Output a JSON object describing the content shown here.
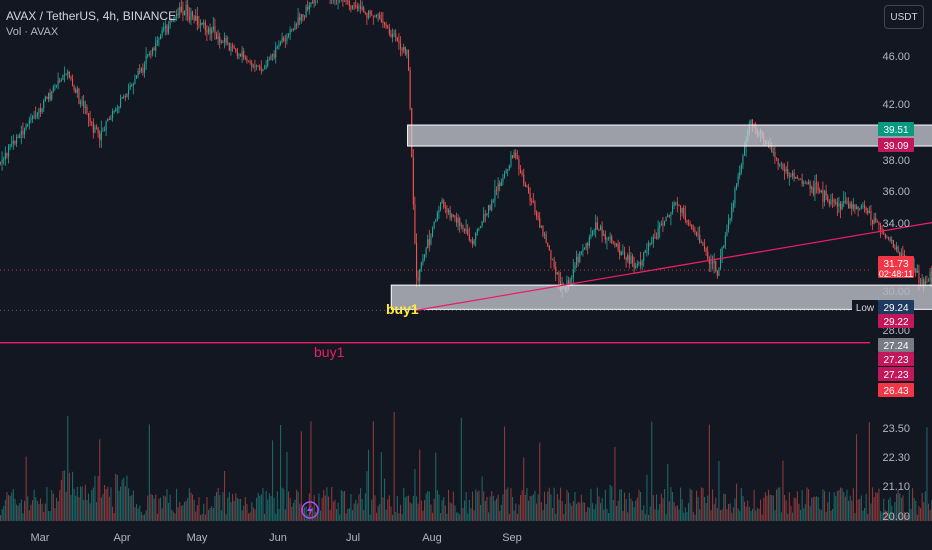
{
  "header": {
    "title": "AVAX / TetherUS, 4h, BINANCE",
    "volume_label": "Vol · AVAX"
  },
  "toolbar": {
    "currency_label": "USDT"
  },
  "price_axis": {
    "ticks": [
      "46.00",
      "42.00",
      "38.00",
      "36.00",
      "34.00",
      "30.00",
      "28.00",
      "23.50",
      "22.30",
      "21.10",
      "20.00"
    ],
    "badges": [
      {
        "label": "39.51",
        "color": "#089981"
      },
      {
        "label": "39.09",
        "color": "#c2185b"
      },
      {
        "label": "31.73",
        "sub": "02:48:11",
        "color": "#f23645"
      },
      {
        "label": "29.24",
        "color": "#1e3a5f",
        "tag": "Low"
      },
      {
        "label": "29.22",
        "color": "#c2185b"
      },
      {
        "label": "27.24",
        "color": "#787b86"
      },
      {
        "label": "27.23",
        "color": "#c2185b"
      },
      {
        "label": "27.23",
        "color": "#c2185b"
      },
      {
        "label": "26.43",
        "color": "#f23645"
      }
    ]
  },
  "time_axis": {
    "labels": [
      "Mar",
      "Apr",
      "May",
      "Jun",
      "Jul",
      "Aug",
      "Sep"
    ]
  },
  "annotations": {
    "buy_label_1": "buy1",
    "buy_label_2": "buy1"
  },
  "chart_data": {
    "type": "candlestick",
    "symbol": "AVAX / TetherUS",
    "interval": "4h",
    "exchange": "BINANCE",
    "grid": false,
    "price_path": [
      {
        "date": "2024-02-20",
        "price": 37.0
      },
      {
        "date": "2024-03-01",
        "price": 44.0
      },
      {
        "date": "2024-03-05",
        "price": 40.0
      },
      {
        "date": "2024-03-15",
        "price": 48.0
      },
      {
        "date": "2024-03-25",
        "price": 44.0
      },
      {
        "date": "2024-04-01",
        "price": 49.0
      },
      {
        "date": "2024-04-08",
        "price": 47.5
      },
      {
        "date": "2024-04-12",
        "price": 45.0
      },
      {
        "date": "2024-04-13",
        "price": 31.0
      },
      {
        "date": "2024-04-16",
        "price": 36.0
      },
      {
        "date": "2024-04-20",
        "price": 33.5
      },
      {
        "date": "2024-04-25",
        "price": 39.0
      },
      {
        "date": "2024-05-01",
        "price": 30.5
      },
      {
        "date": "2024-05-05",
        "price": 34.5
      },
      {
        "date": "2024-05-10",
        "price": 32.0
      },
      {
        "date": "2024-05-15",
        "price": 36.0
      },
      {
        "date": "2024-05-20",
        "price": 31.5
      },
      {
        "date": "2024-05-24",
        "price": 41.0
      },
      {
        "date": "2024-05-28",
        "price": 38.0
      },
      {
        "date": "2024-06-03",
        "price": 36.0
      },
      {
        "date": "2024-06-07",
        "price": 35.5
      },
      {
        "date": "2024-06-10",
        "price": 33.5
      },
      {
        "date": "2024-06-14",
        "price": 31.0
      },
      {
        "date": "2024-06-17",
        "price": 31.73
      }
    ],
    "resistance_zone": {
      "date_from": "2024-04-12",
      "date_to": "2024-06-30",
      "price_from": 39.4,
      "price_to": 40.7
    },
    "support_zone": {
      "date_from": "2024-04-10",
      "date_to": "2024-07-10",
      "price_from": 29.3,
      "price_to": 30.8
    },
    "trendline": [
      {
        "date": "2024-04-13",
        "price": 29.24
      },
      {
        "date": "2024-08-06",
        "price": 39.09
      }
    ],
    "projection": [
      {
        "date": "2024-06-17",
        "price": 31.73
      },
      {
        "date": "2024-06-26",
        "price": 29.6
      },
      {
        "date": "2024-07-04",
        "price": 35.6
      },
      {
        "date": "2024-07-15",
        "price": 30.0
      },
      {
        "date": "2024-07-26",
        "price": 27.24
      },
      {
        "date": "2024-08-10",
        "price": 39.51
      }
    ],
    "horizontal_line": 27.24,
    "position": {
      "entry": 27.24,
      "target": 39.51,
      "stop": 26.43,
      "date_from": "2024-08-06"
    },
    "volume_axis": [
      "23.50",
      "22.30",
      "21.10",
      "20.00"
    ]
  }
}
